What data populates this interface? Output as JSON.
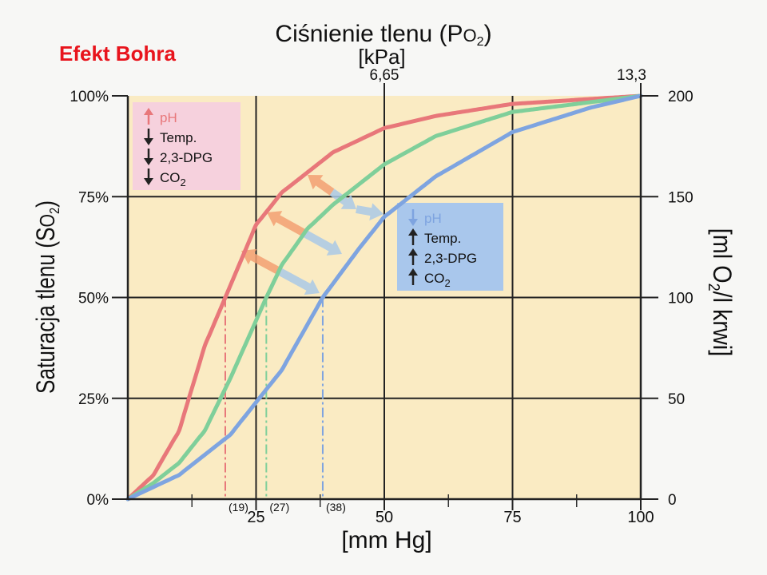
{
  "slide": {
    "title": "Efekt Bohra"
  },
  "chart_data": {
    "type": "line",
    "top_axis": {
      "title": "Ciśnienie tlenu (P",
      "title_sub": "O",
      "title_subscript": "2",
      "title_close": ")",
      "unit": "[kPa]",
      "ticks": [
        "6,65",
        "13,3"
      ]
    },
    "x_axis": {
      "label": "[mm Hg]",
      "ticks": [
        "25",
        "50",
        "75",
        "100"
      ],
      "range": [
        0,
        100
      ]
    },
    "y_axis": {
      "label": "Saturacja tlenu (S",
      "label_sub": "O",
      "label_subscript": "2",
      "label_close": ")",
      "ticks": [
        "0%",
        "25%",
        "50%",
        "75%",
        "100%"
      ],
      "range": [
        0,
        100
      ]
    },
    "right_axis": {
      "label_open": "[ml O",
      "label_subscript": "2",
      "label_close": "/l krwi]",
      "ticks": [
        "0",
        "50",
        "100",
        "150",
        "200"
      ]
    },
    "p50_labels": [
      "(19)",
      "(27)",
      "(38)"
    ],
    "series": [
      {
        "color": "#e8777a",
        "p50": 19,
        "points": [
          [
            0,
            0
          ],
          [
            5,
            6
          ],
          [
            10,
            17
          ],
          [
            15,
            38
          ],
          [
            19,
            50
          ],
          [
            25,
            68
          ],
          [
            30,
            76
          ],
          [
            40,
            86
          ],
          [
            50,
            92
          ],
          [
            60,
            95
          ],
          [
            75,
            98
          ],
          [
            100,
            100
          ]
        ]
      },
      {
        "color": "#7fcf9a",
        "p50": 27,
        "points": [
          [
            0,
            0
          ],
          [
            5,
            4
          ],
          [
            10,
            9
          ],
          [
            15,
            17
          ],
          [
            20,
            30
          ],
          [
            27,
            50
          ],
          [
            30,
            58
          ],
          [
            35,
            67
          ],
          [
            40,
            73
          ],
          [
            50,
            83
          ],
          [
            60,
            90
          ],
          [
            75,
            96
          ],
          [
            100,
            100
          ]
        ]
      },
      {
        "color": "#7ea4e0",
        "p50": 38,
        "points": [
          [
            0,
            0
          ],
          [
            5,
            3
          ],
          [
            10,
            6
          ],
          [
            20,
            16
          ],
          [
            25,
            24
          ],
          [
            30,
            32
          ],
          [
            38,
            50
          ],
          [
            45,
            62
          ],
          [
            50,
            70
          ],
          [
            60,
            80
          ],
          [
            75,
            91
          ],
          [
            90,
            97
          ],
          [
            100,
            100
          ]
        ]
      }
    ],
    "legend_left": {
      "color": "#f6d1dd",
      "items": [
        {
          "arrow": "up",
          "arrow_color": "#e8777a",
          "text": "pH",
          "text_color": "#e8777a"
        },
        {
          "arrow": "down",
          "arrow_color": "#222222",
          "text": "Temp.",
          "text_color": "#111111"
        },
        {
          "arrow": "down",
          "arrow_color": "#222222",
          "text": "2,3-DPG",
          "text_color": "#111111"
        },
        {
          "arrow": "down",
          "arrow_color": "#222222",
          "text": "CO",
          "text_sub": "2",
          "text_color": "#111111"
        }
      ]
    },
    "legend_right": {
      "color": "#a9c7ec",
      "items": [
        {
          "arrow": "down",
          "arrow_color": "#7ea4e0",
          "text": "pH",
          "text_color": "#7ea4e0"
        },
        {
          "arrow": "up",
          "arrow_color": "#222222",
          "text": "Temp.",
          "text_color": "#111111"
        },
        {
          "arrow": "up",
          "arrow_color": "#222222",
          "text": "2,3-DPG",
          "text_color": "#111111"
        },
        {
          "arrow": "up",
          "arrow_color": "#222222",
          "text": "CO",
          "text_sub": "2",
          "text_color": "#111111"
        }
      ]
    },
    "plot_color": "#faebc3",
    "grid": true
  }
}
